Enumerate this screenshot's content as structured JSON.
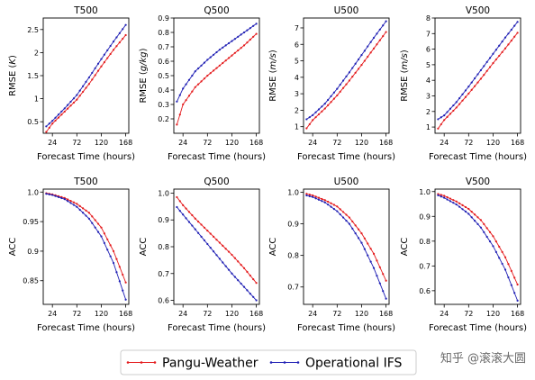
{
  "chart_data": [
    {
      "type": "line",
      "title": "T500",
      "xlabel": "Forecast Time (hours)",
      "ylabel": "RMSE (K)",
      "ylabel_italic_part": "K",
      "xlim": [
        6,
        174
      ],
      "xticks": [
        24,
        72,
        120,
        168
      ],
      "ylim": [
        0.25,
        2.75
      ],
      "yticks": [
        0.5,
        1.0,
        1.5,
        2.0,
        2.5
      ],
      "x_start": 12,
      "x_end": 168,
      "x_step": 6,
      "series": [
        {
          "name": "Pangu-Weather",
          "color": "#e41a1c",
          "knots": [
            [
              12,
              0.28
            ],
            [
              24,
              0.46
            ],
            [
              48,
              0.72
            ],
            [
              72,
              0.98
            ],
            [
              96,
              1.32
            ],
            [
              120,
              1.7
            ],
            [
              144,
              2.06
            ],
            [
              168,
              2.38
            ]
          ]
        },
        {
          "name": "Operational IFS",
          "color": "#1f1fb4",
          "knots": [
            [
              12,
              0.4
            ],
            [
              24,
              0.52
            ],
            [
              48,
              0.79
            ],
            [
              72,
              1.08
            ],
            [
              96,
              1.46
            ],
            [
              120,
              1.86
            ],
            [
              144,
              2.24
            ],
            [
              168,
              2.6
            ]
          ]
        }
      ]
    },
    {
      "type": "line",
      "title": "Q500",
      "xlabel": "Forecast Time (hours)",
      "ylabel": "RMSE (g/kg)",
      "ylabel_italic_part": "g/kg",
      "xlim": [
        6,
        174
      ],
      "xticks": [
        24,
        72,
        120,
        168
      ],
      "ylim": [
        0.1,
        0.9
      ],
      "yticks": [
        0.2,
        0.3,
        0.4,
        0.5,
        0.6,
        0.7,
        0.8,
        0.9
      ],
      "x_start": 12,
      "x_end": 168,
      "x_step": 6,
      "series": [
        {
          "name": "Pangu-Weather",
          "color": "#e41a1c",
          "knots": [
            [
              12,
              0.16
            ],
            [
              24,
              0.3
            ],
            [
              48,
              0.42
            ],
            [
              72,
              0.5
            ],
            [
              96,
              0.57
            ],
            [
              120,
              0.64
            ],
            [
              144,
              0.71
            ],
            [
              168,
              0.79
            ]
          ]
        },
        {
          "name": "Operational IFS",
          "color": "#1f1fb4",
          "knots": [
            [
              12,
              0.32
            ],
            [
              24,
              0.41
            ],
            [
              48,
              0.53
            ],
            [
              72,
              0.61
            ],
            [
              96,
              0.68
            ],
            [
              120,
              0.74
            ],
            [
              144,
              0.8
            ],
            [
              168,
              0.86
            ]
          ]
        }
      ]
    },
    {
      "type": "line",
      "title": "U500",
      "xlabel": "Forecast Time (hours)",
      "ylabel": "RMSE (m/s)",
      "ylabel_italic_part": "m/s",
      "xlim": [
        6,
        174
      ],
      "xticks": [
        24,
        72,
        120,
        168
      ],
      "ylim": [
        0.6,
        7.6
      ],
      "yticks": [
        1,
        2,
        3,
        4,
        5,
        6,
        7
      ],
      "x_start": 12,
      "x_end": 168,
      "x_step": 6,
      "series": [
        {
          "name": "Pangu-Weather",
          "color": "#e41a1c",
          "knots": [
            [
              12,
              0.9
            ],
            [
              24,
              1.4
            ],
            [
              48,
              2.1
            ],
            [
              72,
              2.9
            ],
            [
              96,
              3.8
            ],
            [
              120,
              4.75
            ],
            [
              144,
              5.75
            ],
            [
              168,
              6.75
            ]
          ]
        },
        {
          "name": "Operational IFS",
          "color": "#1f1fb4",
          "knots": [
            [
              12,
              1.45
            ],
            [
              24,
              1.7
            ],
            [
              48,
              2.4
            ],
            [
              72,
              3.3
            ],
            [
              96,
              4.3
            ],
            [
              120,
              5.35
            ],
            [
              144,
              6.4
            ],
            [
              168,
              7.4
            ]
          ]
        }
      ]
    },
    {
      "type": "line",
      "title": "V500",
      "xlabel": "Forecast Time (hours)",
      "ylabel": "RMSE (m/s)",
      "ylabel_italic_part": "m/s",
      "xlim": [
        6,
        174
      ],
      "xticks": [
        24,
        72,
        120,
        168
      ],
      "ylim": [
        0.6,
        8.0
      ],
      "yticks": [
        1,
        2,
        3,
        4,
        5,
        6,
        7,
        8
      ],
      "x_start": 12,
      "x_end": 168,
      "x_step": 6,
      "series": [
        {
          "name": "Pangu-Weather",
          "color": "#e41a1c",
          "knots": [
            [
              12,
              0.9
            ],
            [
              24,
              1.45
            ],
            [
              48,
              2.25
            ],
            [
              72,
              3.15
            ],
            [
              96,
              4.1
            ],
            [
              120,
              5.1
            ],
            [
              144,
              6.05
            ],
            [
              168,
              7.05
            ]
          ]
        },
        {
          "name": "Operational IFS",
          "color": "#1f1fb4",
          "knots": [
            [
              12,
              1.5
            ],
            [
              24,
              1.75
            ],
            [
              48,
              2.6
            ],
            [
              72,
              3.6
            ],
            [
              96,
              4.65
            ],
            [
              120,
              5.7
            ],
            [
              144,
              6.75
            ],
            [
              168,
              7.75
            ]
          ]
        }
      ]
    },
    {
      "type": "line",
      "title": "T500",
      "xlabel": "Forecast Time (hours)",
      "ylabel": "ACC",
      "xlim": [
        6,
        174
      ],
      "xticks": [
        24,
        72,
        120,
        168
      ],
      "ylim": [
        0.81,
        1.005
      ],
      "yticks": [
        0.85,
        0.9,
        0.95,
        1.0
      ],
      "ytick_labels": [
        "0.85",
        "0.9",
        "0.95",
        "1.0"
      ],
      "x_start": 12,
      "x_end": 168,
      "x_step": 6,
      "series": [
        {
          "name": "Pangu-Weather",
          "color": "#e41a1c",
          "knots": [
            [
              12,
              0.998
            ],
            [
              24,
              0.996
            ],
            [
              48,
              0.99
            ],
            [
              72,
              0.98
            ],
            [
              96,
              0.965
            ],
            [
              120,
              0.94
            ],
            [
              144,
              0.9
            ],
            [
              168,
              0.847
            ]
          ]
        },
        {
          "name": "Operational IFS",
          "color": "#1f1fb4",
          "knots": [
            [
              12,
              0.997
            ],
            [
              24,
              0.995
            ],
            [
              48,
              0.988
            ],
            [
              72,
              0.975
            ],
            [
              96,
              0.955
            ],
            [
              120,
              0.925
            ],
            [
              144,
              0.88
            ],
            [
              168,
              0.818
            ]
          ]
        }
      ]
    },
    {
      "type": "line",
      "title": "Q500",
      "xlabel": "Forecast Time (hours)",
      "ylabel": "ACC",
      "xlim": [
        6,
        174
      ],
      "xticks": [
        24,
        72,
        120,
        168
      ],
      "ylim": [
        0.585,
        1.015
      ],
      "yticks": [
        0.6,
        0.7,
        0.8,
        0.9,
        1.0
      ],
      "ytick_labels": [
        "0.6",
        "0.7",
        "0.8",
        "0.9",
        "1.0"
      ],
      "x_start": 12,
      "x_end": 168,
      "x_step": 6,
      "series": [
        {
          "name": "Pangu-Weather",
          "color": "#e41a1c",
          "knots": [
            [
              12,
              0.985
            ],
            [
              24,
              0.955
            ],
            [
              48,
              0.905
            ],
            [
              72,
              0.86
            ],
            [
              96,
              0.815
            ],
            [
              120,
              0.77
            ],
            [
              144,
              0.72
            ],
            [
              168,
              0.665
            ]
          ]
        },
        {
          "name": "Operational IFS",
          "color": "#1f1fb4",
          "knots": [
            [
              12,
              0.948
            ],
            [
              24,
              0.92
            ],
            [
              48,
              0.865
            ],
            [
              72,
              0.81
            ],
            [
              96,
              0.755
            ],
            [
              120,
              0.7
            ],
            [
              144,
              0.65
            ],
            [
              168,
              0.6
            ]
          ]
        }
      ]
    },
    {
      "type": "line",
      "title": "U500",
      "xlabel": "Forecast Time (hours)",
      "ylabel": "ACC",
      "xlim": [
        6,
        174
      ],
      "xticks": [
        24,
        72,
        120,
        168
      ],
      "ylim": [
        0.645,
        1.01
      ],
      "yticks": [
        0.7,
        0.8,
        0.9,
        1.0
      ],
      "ytick_labels": [
        "0.7",
        "0.8",
        "0.9",
        "1.0"
      ],
      "x_start": 12,
      "x_end": 168,
      "x_step": 6,
      "series": [
        {
          "name": "Pangu-Weather",
          "color": "#e41a1c",
          "knots": [
            [
              12,
              0.995
            ],
            [
              24,
              0.99
            ],
            [
              48,
              0.975
            ],
            [
              72,
              0.955
            ],
            [
              96,
              0.92
            ],
            [
              120,
              0.87
            ],
            [
              144,
              0.805
            ],
            [
              168,
              0.72
            ]
          ]
        },
        {
          "name": "Operational IFS",
          "color": "#1f1fb4",
          "knots": [
            [
              12,
              0.99
            ],
            [
              24,
              0.985
            ],
            [
              48,
              0.968
            ],
            [
              72,
              0.94
            ],
            [
              96,
              0.9
            ],
            [
              120,
              0.84
            ],
            [
              144,
              0.76
            ],
            [
              168,
              0.663
            ]
          ]
        }
      ]
    },
    {
      "type": "line",
      "title": "V500",
      "xlabel": "Forecast Time (hours)",
      "ylabel": "ACC",
      "xlim": [
        6,
        174
      ],
      "xticks": [
        24,
        72,
        120,
        168
      ],
      "ylim": [
        0.545,
        1.01
      ],
      "yticks": [
        0.6,
        0.7,
        0.8,
        0.9,
        1.0
      ],
      "ytick_labels": [
        "0.6",
        "0.7",
        "0.8",
        "0.9",
        "1.0"
      ],
      "x_start": 12,
      "x_end": 168,
      "x_step": 6,
      "series": [
        {
          "name": "Pangu-Weather",
          "color": "#e41a1c",
          "knots": [
            [
              12,
              0.99
            ],
            [
              24,
              0.983
            ],
            [
              48,
              0.96
            ],
            [
              72,
              0.93
            ],
            [
              96,
              0.885
            ],
            [
              120,
              0.82
            ],
            [
              144,
              0.735
            ],
            [
              168,
              0.625
            ]
          ]
        },
        {
          "name": "Operational IFS",
          "color": "#1f1fb4",
          "knots": [
            [
              12,
              0.985
            ],
            [
              24,
              0.975
            ],
            [
              48,
              0.948
            ],
            [
              72,
              0.91
            ],
            [
              96,
              0.855
            ],
            [
              120,
              0.78
            ],
            [
              144,
              0.685
            ],
            [
              168,
              0.56
            ]
          ]
        }
      ]
    }
  ],
  "legend": {
    "position": "bottom-center",
    "items": [
      {
        "label": "Pangu-Weather",
        "color": "#e41a1c"
      },
      {
        "label": "Operational IFS",
        "color": "#1f1fb4"
      }
    ]
  },
  "watermark": "知乎 @滚滚大圆"
}
